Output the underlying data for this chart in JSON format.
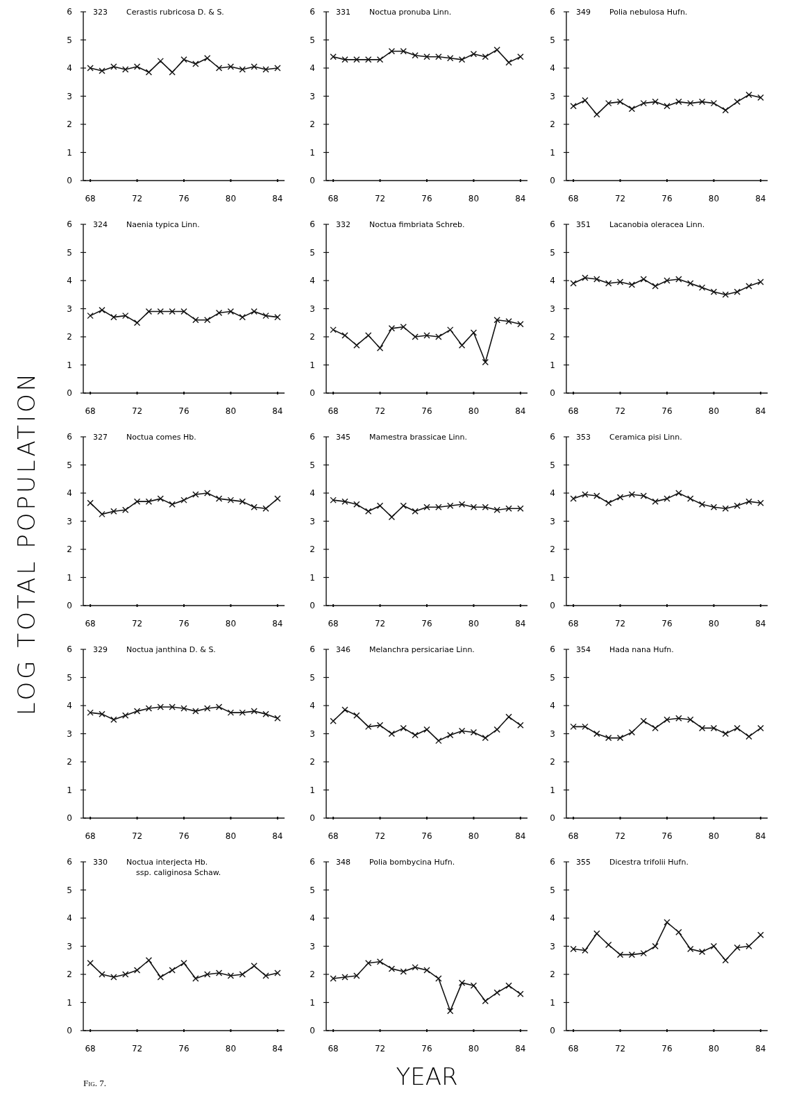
{
  "chart_data": [
    {
      "type": "line",
      "title": "323",
      "subtitle": "Cerastis rubricosa D. & S.",
      "x": [
        68,
        69,
        70,
        71,
        72,
        73,
        74,
        75,
        76,
        77,
        78,
        79,
        80,
        81,
        82,
        83,
        84
      ],
      "values": [
        4.0,
        3.9,
        4.05,
        3.95,
        4.05,
        3.85,
        4.25,
        3.85,
        4.3,
        4.15,
        4.35,
        4.0,
        4.05,
        3.95,
        4.05,
        3.95,
        4.0
      ],
      "color": "#111111",
      "xlim": [
        67.4,
        84.6
      ],
      "xticks": [
        68,
        72,
        76,
        80,
        84
      ],
      "ylim": [
        0,
        6
      ],
      "yticks": [
        0,
        1,
        2,
        3,
        4,
        5,
        6
      ],
      "marker": "cross",
      "line_style": "solid"
    },
    {
      "type": "line",
      "title": "331",
      "subtitle": "Noctua pronuba Linn.",
      "x": [
        68,
        69,
        70,
        71,
        72,
        73,
        74,
        75,
        76,
        77,
        78,
        79,
        80,
        81,
        82,
        83,
        84
      ],
      "values": [
        4.4,
        4.3,
        4.3,
        4.3,
        4.3,
        4.6,
        4.6,
        4.45,
        4.4,
        4.4,
        4.35,
        4.3,
        4.5,
        4.4,
        4.65,
        4.2,
        4.4
      ],
      "color": "#111111",
      "xlim": [
        67.4,
        84.6
      ],
      "xticks": [
        68,
        72,
        76,
        80,
        84
      ],
      "ylim": [
        0,
        6
      ],
      "yticks": [
        0,
        1,
        2,
        3,
        4,
        5,
        6
      ],
      "marker": "cross",
      "line_style": "solid"
    },
    {
      "type": "line",
      "title": "349",
      "subtitle": "Polia nebulosa Hufn.",
      "x": [
        68,
        69,
        70,
        71,
        72,
        73,
        74,
        75,
        76,
        77,
        78,
        79,
        80,
        81,
        82,
        83,
        84
      ],
      "values": [
        2.65,
        2.85,
        2.35,
        2.75,
        2.8,
        2.55,
        2.75,
        2.8,
        2.65,
        2.8,
        2.75,
        2.8,
        2.75,
        2.5,
        2.8,
        3.05,
        2.95
      ],
      "color": "#111111",
      "xlim": [
        67.4,
        84.6
      ],
      "xticks": [
        68,
        72,
        76,
        80,
        84
      ],
      "ylim": [
        0,
        6
      ],
      "yticks": [
        0,
        1,
        2,
        3,
        4,
        5,
        6
      ],
      "marker": "cross",
      "line_style": "solid"
    },
    {
      "type": "line",
      "title": "324",
      "subtitle": "Naenia typica Linn.",
      "x": [
        68,
        69,
        70,
        71,
        72,
        73,
        74,
        75,
        76,
        77,
        78,
        79,
        80,
        81,
        82,
        83,
        84
      ],
      "values": [
        2.75,
        2.95,
        2.7,
        2.75,
        2.5,
        2.9,
        2.9,
        2.9,
        2.9,
        2.6,
        2.6,
        2.85,
        2.9,
        2.7,
        2.9,
        2.75,
        2.7
      ],
      "color": "#111111",
      "xlim": [
        67.4,
        84.6
      ],
      "xticks": [
        68,
        72,
        76,
        80,
        84
      ],
      "ylim": [
        0,
        6
      ],
      "yticks": [
        0,
        1,
        2,
        3,
        4,
        5,
        6
      ],
      "marker": "cross",
      "line_style": "solid"
    },
    {
      "type": "line",
      "title": "332",
      "subtitle": "Noctua fimbriata Schreb.",
      "x": [
        68,
        69,
        70,
        71,
        72,
        73,
        74,
        75,
        76,
        77,
        78,
        79,
        80,
        81,
        82,
        83,
        84
      ],
      "values": [
        2.25,
        2.05,
        1.7,
        2.05,
        1.6,
        2.3,
        2.35,
        2.0,
        2.05,
        2.0,
        2.25,
        1.7,
        2.15,
        1.1,
        2.6,
        2.55,
        2.45
      ],
      "color": "#111111",
      "xlim": [
        67.4,
        84.6
      ],
      "xticks": [
        68,
        72,
        76,
        80,
        84
      ],
      "ylim": [
        0,
        6
      ],
      "yticks": [
        0,
        1,
        2,
        3,
        4,
        5,
        6
      ],
      "marker": "cross",
      "line_style": "solid"
    },
    {
      "type": "line",
      "title": "351",
      "subtitle": "Lacanobia oleracea Linn.",
      "x": [
        68,
        69,
        70,
        71,
        72,
        73,
        74,
        75,
        76,
        77,
        78,
        79,
        80,
        81,
        82,
        83,
        84
      ],
      "values": [
        3.9,
        4.1,
        4.05,
        3.9,
        3.95,
        3.85,
        4.05,
        3.8,
        4.0,
        4.05,
        3.9,
        3.75,
        3.6,
        3.5,
        3.6,
        3.8,
        3.95
      ],
      "color": "#111111",
      "xlim": [
        67.4,
        84.6
      ],
      "xticks": [
        68,
        72,
        76,
        80,
        84
      ],
      "ylim": [
        0,
        6
      ],
      "yticks": [
        0,
        1,
        2,
        3,
        4,
        5,
        6
      ],
      "marker": "cross",
      "line_style": "solid"
    },
    {
      "type": "line",
      "title": "327",
      "subtitle": "Noctua comes Hb.",
      "ylabel": "LOG TOTAL POPULATION",
      "x": [
        68,
        69,
        70,
        71,
        72,
        73,
        74,
        75,
        76,
        77,
        78,
        79,
        80,
        81,
        82,
        83,
        84
      ],
      "values": [
        3.65,
        3.25,
        3.35,
        3.4,
        3.7,
        3.7,
        3.8,
        3.6,
        3.75,
        3.95,
        4.0,
        3.8,
        3.75,
        3.7,
        3.5,
        3.45,
        3.8
      ],
      "color": "#111111",
      "xlim": [
        67.4,
        84.6
      ],
      "xticks": [
        68,
        72,
        76,
        80,
        84
      ],
      "ylim": [
        0,
        6
      ],
      "yticks": [
        0,
        1,
        2,
        3,
        4,
        5,
        6
      ],
      "marker": "cross",
      "line_style": "solid"
    },
    {
      "type": "line",
      "title": "345",
      "subtitle": "Mamestra brassicae Linn.",
      "x": [
        68,
        69,
        70,
        71,
        72,
        73,
        74,
        75,
        76,
        77,
        78,
        79,
        80,
        81,
        82,
        83,
        84
      ],
      "values": [
        3.75,
        3.7,
        3.6,
        3.35,
        3.55,
        3.15,
        3.55,
        3.35,
        3.5,
        3.5,
        3.55,
        3.6,
        3.5,
        3.5,
        3.4,
        3.45,
        3.45
      ],
      "color": "#111111",
      "xlim": [
        67.4,
        84.6
      ],
      "xticks": [
        68,
        72,
        76,
        80,
        84
      ],
      "ylim": [
        0,
        6
      ],
      "yticks": [
        0,
        1,
        2,
        3,
        4,
        5,
        6
      ],
      "marker": "cross",
      "line_style": "solid"
    },
    {
      "type": "line",
      "title": "353",
      "subtitle": "Ceramica pisi Linn.",
      "x": [
        68,
        69,
        70,
        71,
        72,
        73,
        74,
        75,
        76,
        77,
        78,
        79,
        80,
        81,
        82,
        83,
        84
      ],
      "values": [
        3.8,
        3.95,
        3.9,
        3.65,
        3.85,
        3.95,
        3.9,
        3.7,
        3.8,
        4.0,
        3.8,
        3.6,
        3.5,
        3.45,
        3.55,
        3.7,
        3.65
      ],
      "color": "#111111",
      "xlim": [
        67.4,
        84.6
      ],
      "xticks": [
        68,
        72,
        76,
        80,
        84
      ],
      "ylim": [
        0,
        6
      ],
      "yticks": [
        0,
        1,
        2,
        3,
        4,
        5,
        6
      ],
      "marker": "cross",
      "line_style": "solid"
    },
    {
      "type": "line",
      "title": "329",
      "subtitle": "Noctua janthina D. & S.",
      "x": [
        68,
        69,
        70,
        71,
        72,
        73,
        74,
        75,
        76,
        77,
        78,
        79,
        80,
        81,
        82,
        83,
        84
      ],
      "values": [
        3.75,
        3.7,
        3.5,
        3.65,
        3.8,
        3.9,
        3.95,
        3.95,
        3.9,
        3.8,
        3.9,
        3.95,
        3.75,
        3.75,
        3.8,
        3.7,
        3.55
      ],
      "color": "#111111",
      "xlim": [
        67.4,
        84.6
      ],
      "xticks": [
        68,
        72,
        76,
        80,
        84
      ],
      "ylim": [
        0,
        6
      ],
      "yticks": [
        0,
        1,
        2,
        3,
        4,
        5,
        6
      ],
      "marker": "cross",
      "line_style": "solid"
    },
    {
      "type": "line",
      "title": "346",
      "subtitle": "Melanchra persicariae Linn.",
      "x": [
        68,
        69,
        70,
        71,
        72,
        73,
        74,
        75,
        76,
        77,
        78,
        79,
        80,
        81,
        82,
        83,
        84
      ],
      "values": [
        3.45,
        3.85,
        3.65,
        3.25,
        3.3,
        3.0,
        3.2,
        2.95,
        3.15,
        2.75,
        2.95,
        3.1,
        3.05,
        2.85,
        3.15,
        3.6,
        3.3
      ],
      "color": "#111111",
      "xlim": [
        67.4,
        84.6
      ],
      "xticks": [
        68,
        72,
        76,
        80,
        84
      ],
      "ylim": [
        0,
        6
      ],
      "yticks": [
        0,
        1,
        2,
        3,
        4,
        5,
        6
      ],
      "marker": "cross",
      "line_style": "solid"
    },
    {
      "type": "line",
      "title": "354",
      "subtitle": "Hada nana Hufn.",
      "x": [
        68,
        69,
        70,
        71,
        72,
        73,
        74,
        75,
        76,
        77,
        78,
        79,
        80,
        81,
        82,
        83,
        84
      ],
      "values": [
        3.25,
        3.25,
        3.0,
        2.85,
        2.85,
        3.05,
        3.45,
        3.2,
        3.5,
        3.55,
        3.5,
        3.2,
        3.2,
        3.0,
        3.2,
        2.9,
        3.2
      ],
      "color": "#111111",
      "xlim": [
        67.4,
        84.6
      ],
      "xticks": [
        68,
        72,
        76,
        80,
        84
      ],
      "ylim": [
        0,
        6
      ],
      "yticks": [
        0,
        1,
        2,
        3,
        4,
        5,
        6
      ],
      "marker": "cross",
      "line_style": "solid"
    },
    {
      "type": "line",
      "title": "330",
      "subtitle": "Noctua interjecta Hb.\nssp. caliginosa Schaw.",
      "annotations": [
        "Fig. 7."
      ],
      "x": [
        68,
        69,
        70,
        71,
        72,
        73,
        74,
        75,
        76,
        77,
        78,
        79,
        80,
        81,
        82,
        83,
        84
      ],
      "values": [
        2.4,
        2.0,
        1.9,
        2.0,
        2.15,
        2.5,
        1.9,
        2.15,
        2.4,
        1.85,
        2.0,
        2.05,
        1.95,
        2.0,
        2.3,
        1.95,
        2.05
      ],
      "color": "#111111",
      "xlim": [
        67.4,
        84.6
      ],
      "xticks": [
        68,
        72,
        76,
        80,
        84
      ],
      "ylim": [
        0,
        6
      ],
      "yticks": [
        0,
        1,
        2,
        3,
        4,
        5,
        6
      ],
      "marker": "cross",
      "line_style": "solid"
    },
    {
      "type": "line",
      "title": "348",
      "subtitle": "Polia bombycina Hufn.",
      "xlabel": "YEAR",
      "x": [
        68,
        69,
        70,
        71,
        72,
        73,
        74,
        75,
        76,
        77,
        78,
        79,
        80,
        81,
        82,
        83,
        84
      ],
      "values": [
        1.85,
        1.9,
        1.95,
        2.4,
        2.45,
        2.2,
        2.1,
        2.25,
        2.15,
        1.85,
        0.7,
        1.7,
        1.6,
        1.05,
        1.35,
        1.6,
        1.3
      ],
      "color": "#111111",
      "xlim": [
        67.4,
        84.6
      ],
      "xticks": [
        68,
        72,
        76,
        80,
        84
      ],
      "ylim": [
        0,
        6
      ],
      "yticks": [
        0,
        1,
        2,
        3,
        4,
        5,
        6
      ],
      "marker": "cross",
      "line_style": "solid"
    },
    {
      "type": "line",
      "title": "355",
      "subtitle": "Dicestra trifolii Hufn.",
      "x": [
        68,
        69,
        70,
        71,
        72,
        73,
        74,
        75,
        76,
        77,
        78,
        79,
        80,
        81,
        82,
        83,
        84
      ],
      "values": [
        2.9,
        2.85,
        3.45,
        3.05,
        2.7,
        2.7,
        2.75,
        3.0,
        3.85,
        3.5,
        2.9,
        2.8,
        3.0,
        2.5,
        2.95,
        3.0,
        3.4
      ],
      "color": "#111111",
      "xlim": [
        67.4,
        84.6
      ],
      "xticks": [
        68,
        72,
        76,
        80,
        84
      ],
      "ylim": [
        0,
        6
      ],
      "yticks": [
        0,
        1,
        2,
        3,
        4,
        5,
        6
      ],
      "marker": "cross",
      "line_style": "solid"
    }
  ]
}
